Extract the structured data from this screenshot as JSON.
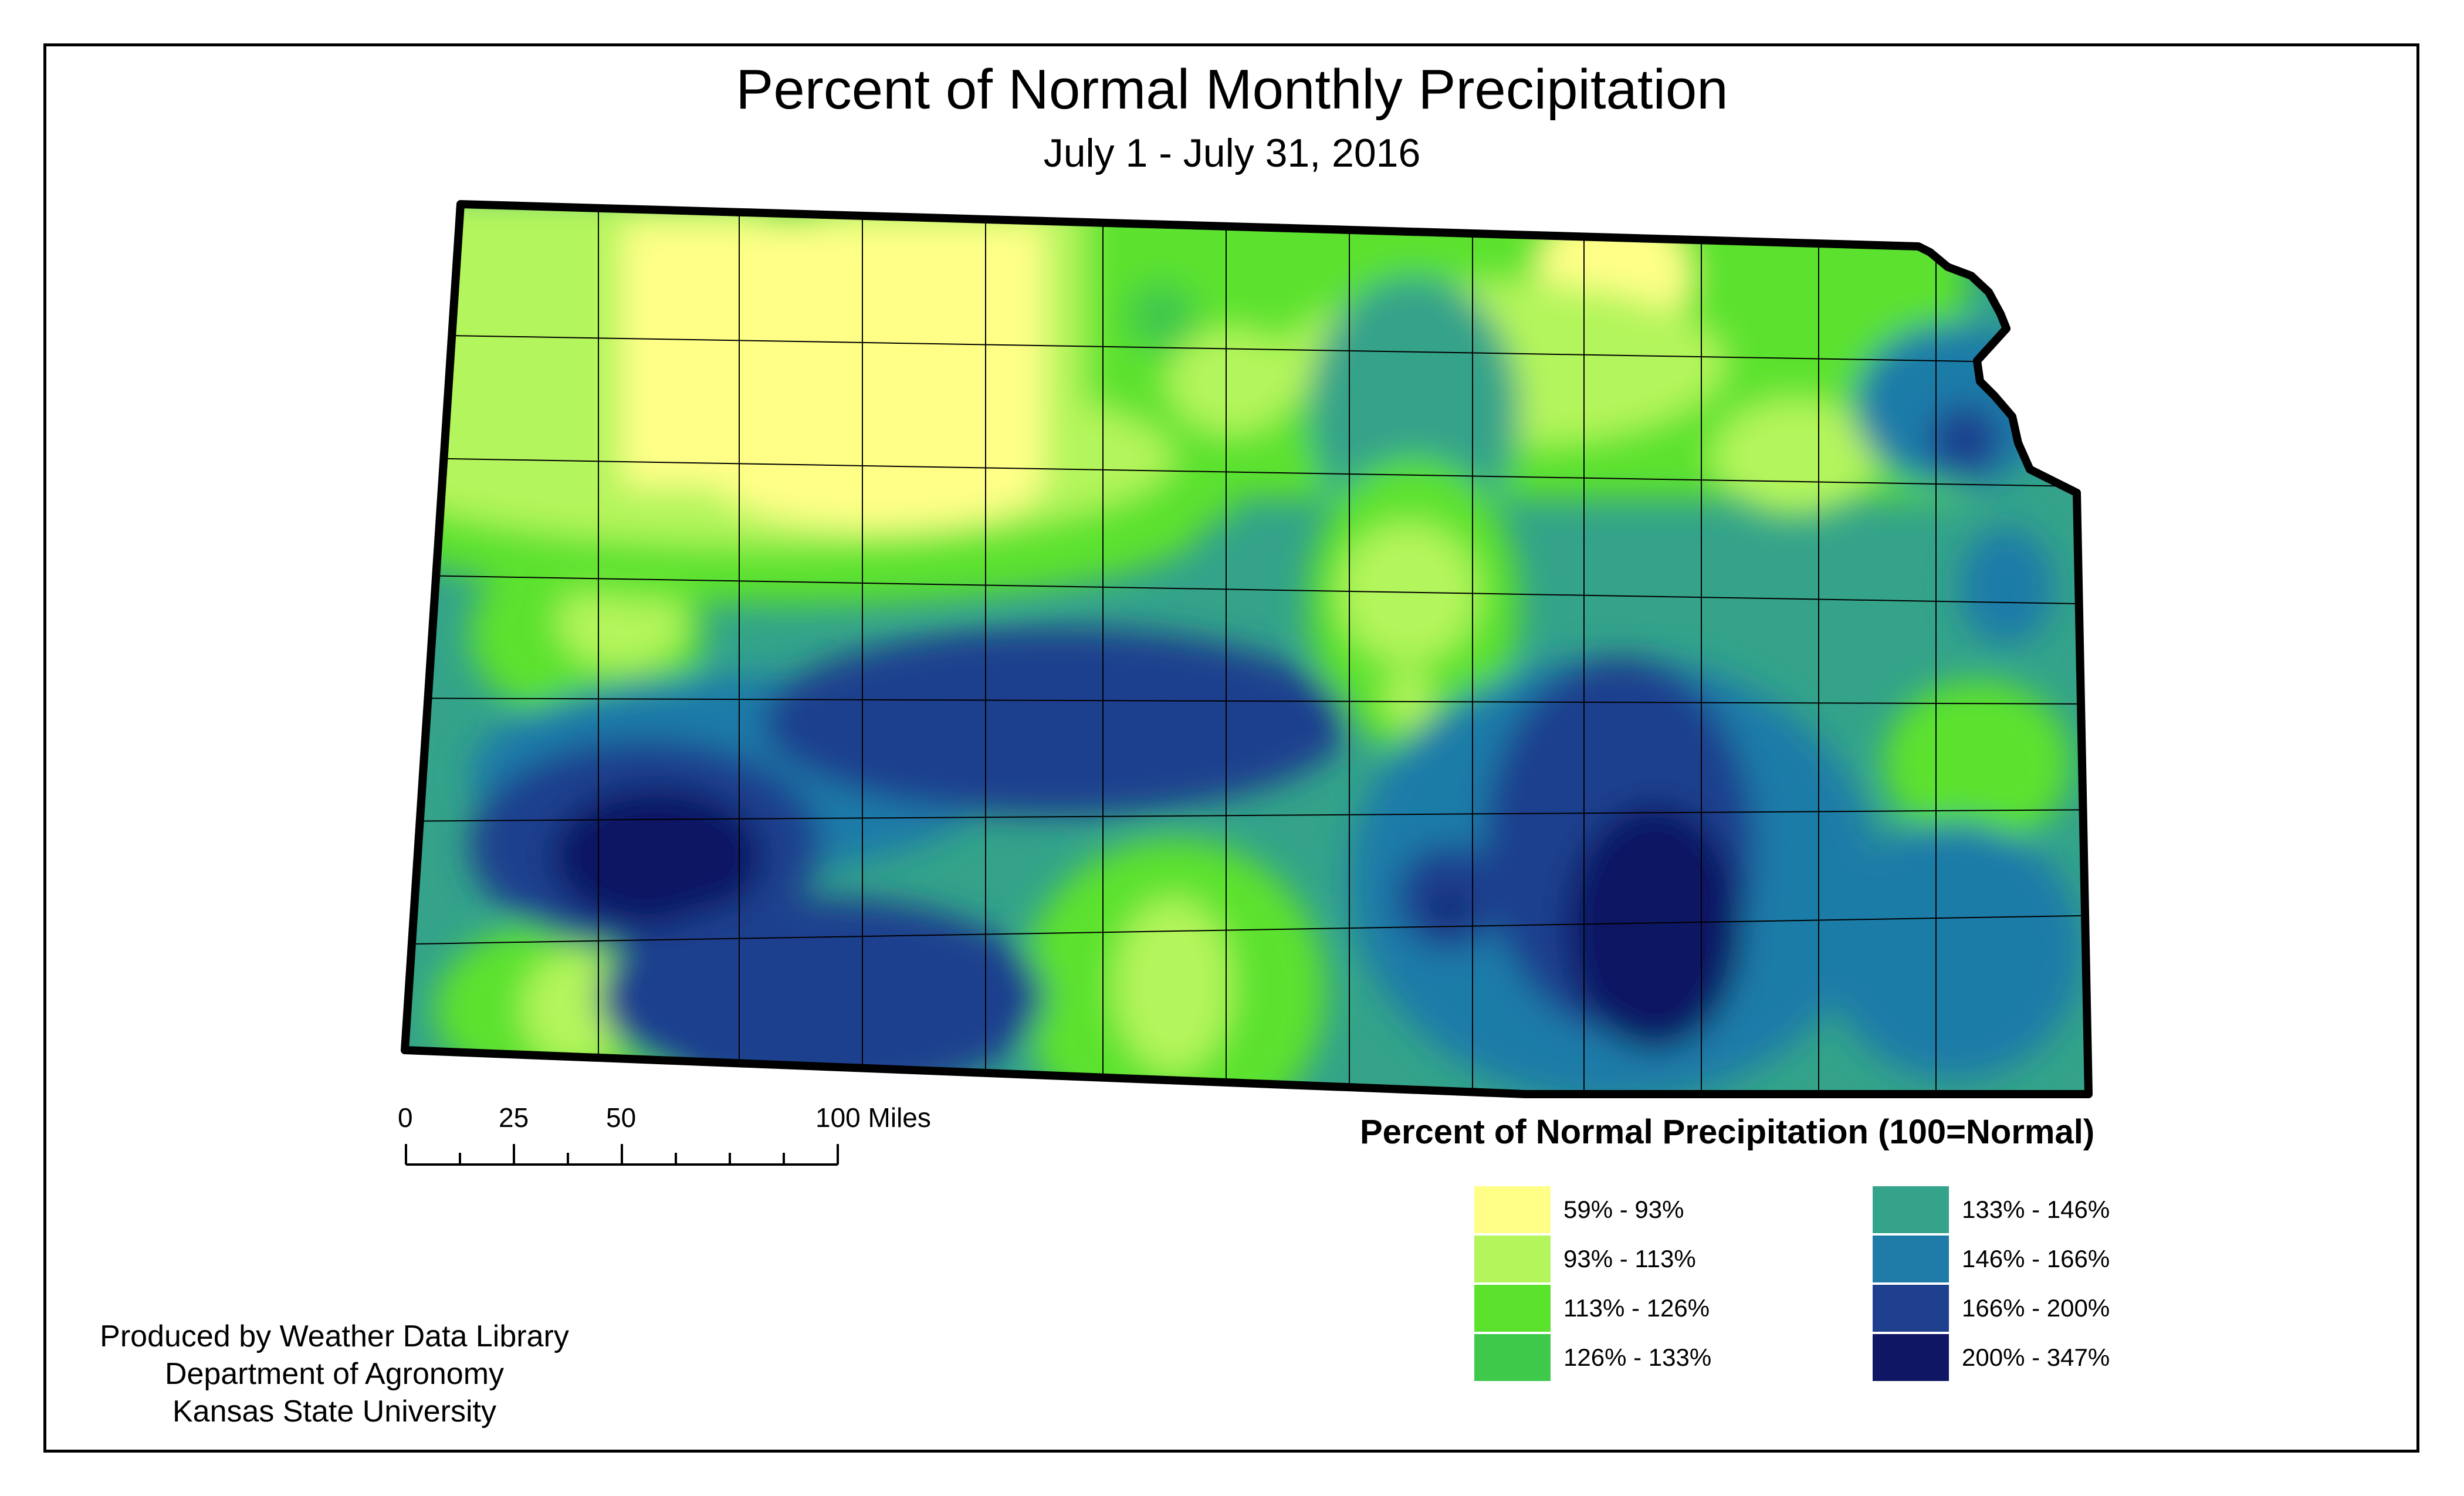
{
  "title": "Percent of Normal Monthly Precipitation",
  "subtitle": "July 1 - July 31, 2016",
  "scale_bar": {
    "ticks": [
      "0",
      "25",
      "50",
      "100 Miles"
    ]
  },
  "legend": {
    "title": "Percent of Normal Precipitation (100=Normal)",
    "items": [
      {
        "label": "59% - 93%",
        "color": "#FFFF88"
      },
      {
        "label": "93% - 113%",
        "color": "#B3F55B"
      },
      {
        "label": "113% - 126%",
        "color": "#5BE22D"
      },
      {
        "label": "126% - 133%",
        "color": "#3FC94B"
      },
      {
        "label": "133% - 146%",
        "color": "#34A38A"
      },
      {
        "label": "146% - 166%",
        "color": "#1F7CA8"
      },
      {
        "label": "166% - 200%",
        "color": "#1E408E"
      },
      {
        "label": "200% - 347%",
        "color": "#0F1663"
      }
    ]
  },
  "credits": {
    "line1": "Produced by Weather Data Library",
    "line2": "Department of Agronomy",
    "line3": "Kansas State University"
  }
}
